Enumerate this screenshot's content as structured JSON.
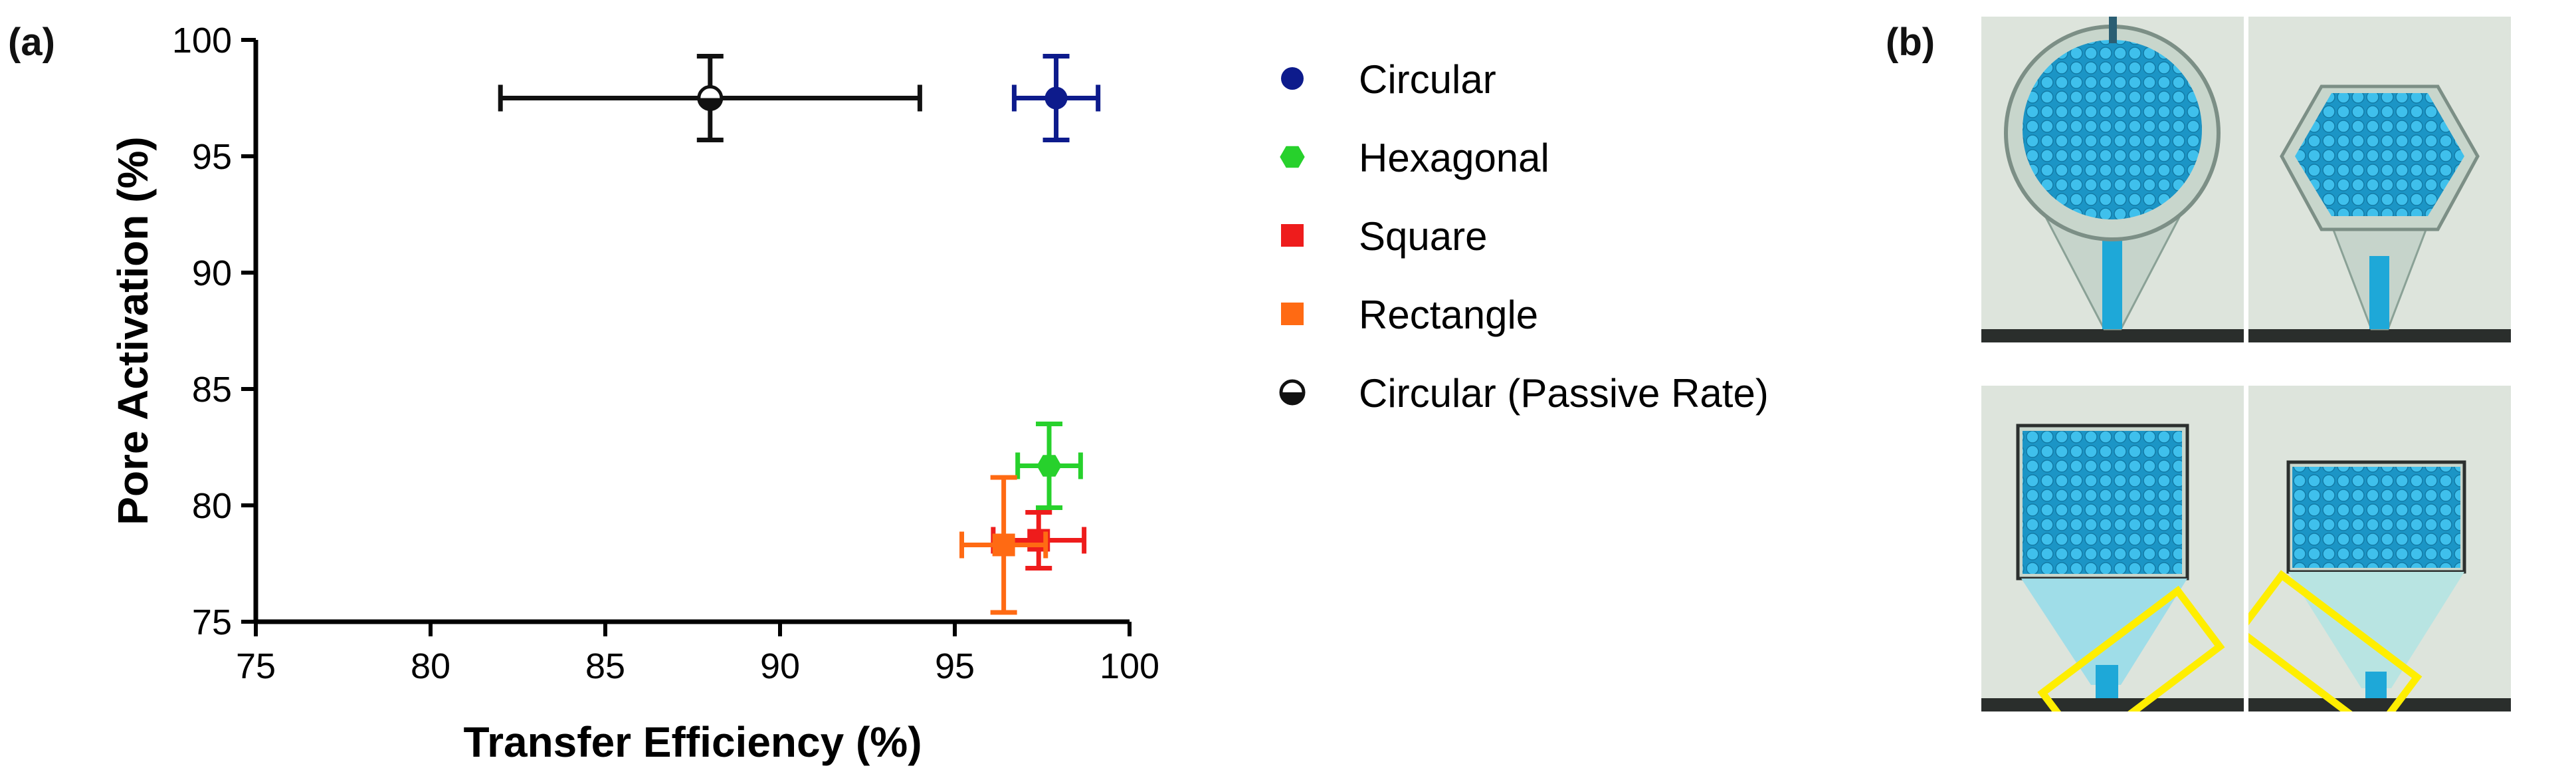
{
  "panel_a_label": "(a)",
  "panel_b_label": "(b)",
  "chart_data": {
    "type": "scatter",
    "title": "",
    "xlabel": "Transfer Efficiency (%)",
    "ylabel": "Pore Activation (%)",
    "xlim": [
      75,
      100
    ],
    "ylim": [
      75,
      100
    ],
    "xticks": [
      75,
      80,
      85,
      90,
      95,
      100
    ],
    "yticks": [
      75,
      80,
      85,
      90,
      95,
      100
    ],
    "grid": false,
    "legend_position": "right",
    "series": [
      {
        "name": "Circular",
        "marker": "circle",
        "color": "#0d1b8c",
        "x": 97.9,
        "y": 97.5,
        "xerr": 1.2,
        "yerr": 1.8
      },
      {
        "name": "Hexagonal",
        "marker": "hexagon",
        "color": "#27d12c",
        "x": 97.7,
        "y": 81.7,
        "xerr": 0.9,
        "yerr": 1.8
      },
      {
        "name": "Square",
        "marker": "square",
        "color": "#ee1c1c",
        "x": 97.4,
        "y": 78.5,
        "xerr": 1.3,
        "yerr": 1.2
      },
      {
        "name": "Rectangle",
        "marker": "square",
        "color": "#ff6a13",
        "x": 96.4,
        "y": 78.3,
        "xerr": 1.2,
        "yerr": 2.9
      },
      {
        "name": "Circular (Passive Rate)",
        "marker": "half-circle",
        "color": "#111111",
        "x": 88.0,
        "y": 97.5,
        "xerr": 6.0,
        "yerr": 1.8
      }
    ]
  },
  "photos": [
    {
      "name": "photo-circular-chamber",
      "shape": "circle"
    },
    {
      "name": "photo-hexagonal-chamber",
      "shape": "hexagon"
    },
    {
      "name": "photo-square-chamber",
      "shape": "square"
    },
    {
      "name": "photo-rectangle-chamber",
      "shape": "rectangle"
    }
  ],
  "colors": {
    "highlight_box": "#ffee00",
    "fluid": "#1ea8d8",
    "photo_background": "#dde4dc"
  }
}
